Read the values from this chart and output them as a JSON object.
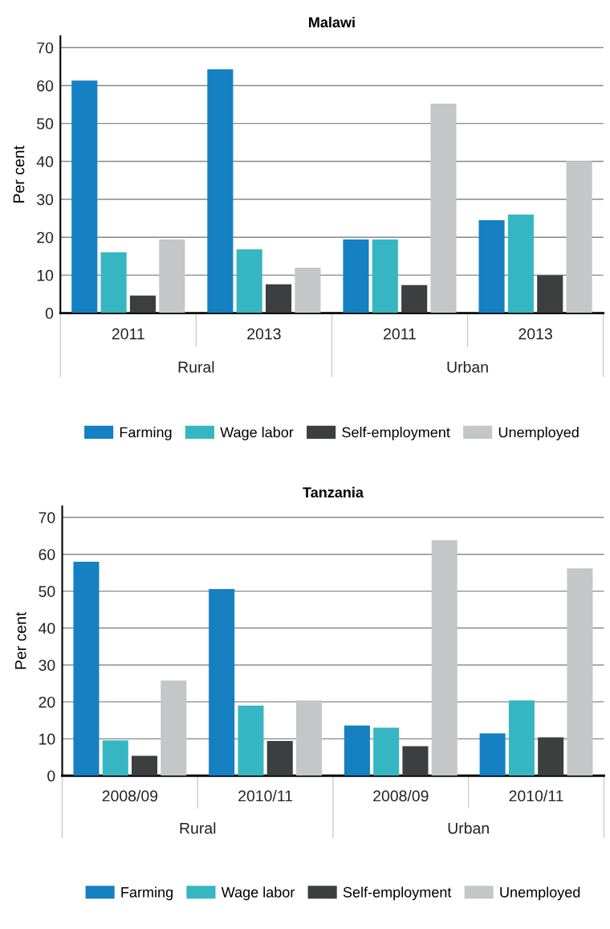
{
  "chart_data": [
    {
      "type": "bar",
      "title": "Malawi",
      "ylabel": "Per cent",
      "categories": [
        "2011",
        "2013",
        "2011",
        "2013"
      ],
      "annotations": [
        "Rural",
        "Urban"
      ],
      "series": [
        {
          "name": "Farming",
          "color": "#1580c2",
          "values": [
            61.3,
            64.3,
            19.4,
            24.5
          ]
        },
        {
          "name": "Wage labor",
          "color": "#36b6c2",
          "values": [
            16.0,
            16.8,
            19.4,
            26.0
          ]
        },
        {
          "name": "Self-employment",
          "color": "#3d3e40",
          "values": [
            4.6,
            7.6,
            7.4,
            10.0
          ]
        },
        {
          "name": "Unemployed",
          "color": "#c5c6c8",
          "values": [
            19.4,
            12.0,
            55.2,
            40.1
          ]
        }
      ],
      "ylim": [
        0,
        73
      ],
      "yticks": [
        0,
        10,
        20,
        30,
        40,
        50,
        60,
        70
      ],
      "grid": "y",
      "legend": "bottom"
    },
    {
      "type": "bar",
      "title": "Tanzania",
      "ylabel": "Per cent",
      "categories": [
        "2008/09",
        "2010/11",
        "2008/09",
        "2010/11"
      ],
      "annotations": [
        "Rural",
        "Urban"
      ],
      "series": [
        {
          "name": "Farming",
          "color": "#1580c2",
          "values": [
            58.0,
            50.6,
            13.6,
            11.5
          ]
        },
        {
          "name": "Wage labor",
          "color": "#36b6c2",
          "values": [
            9.6,
            19.0,
            13.0,
            20.4
          ]
        },
        {
          "name": "Self-employment",
          "color": "#3d3e40",
          "values": [
            5.4,
            9.4,
            8.0,
            10.4
          ]
        },
        {
          "name": "Unemployed",
          "color": "#c5c6c8",
          "values": [
            25.8,
            20.4,
            63.8,
            56.2
          ]
        }
      ],
      "ylim": [
        0,
        73
      ],
      "yticks": [
        0,
        10,
        20,
        30,
        40,
        50,
        60,
        70
      ],
      "grid": "y",
      "legend": "bottom"
    }
  ]
}
